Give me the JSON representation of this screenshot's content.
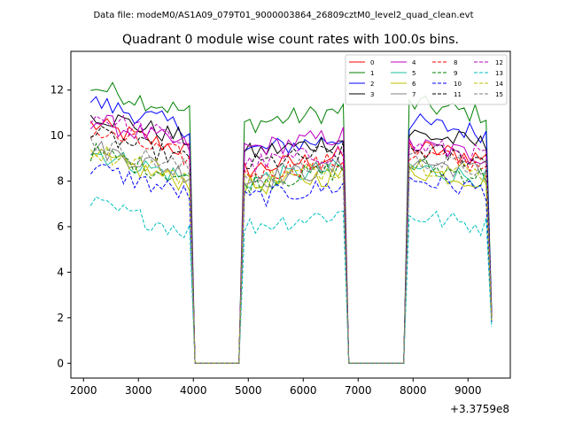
{
  "figure": {
    "suptitle": "Data file: modeM0/AS1A09_079T01_9000003864_26809cztM0_level2_quad_clean.evt"
  },
  "chart_data": {
    "type": "line",
    "title": "Quadrant 0 module wise count rates with 100.0s bins.",
    "xlabel": "",
    "ylabel": "",
    "x_offset_label": "+3.3759e8",
    "xlim": [
      1770,
      9770
    ],
    "ylim": [
      -0.65,
      13.7
    ],
    "xticks": [
      2000,
      3000,
      4000,
      5000,
      6000,
      7000,
      8000,
      9000
    ],
    "xtick_labels": [
      "2000",
      "3000",
      "4000",
      "5000",
      "6000",
      "7000",
      "8000",
      "9000"
    ],
    "yticks": [
      0,
      2,
      4,
      6,
      8,
      10,
      12
    ],
    "ytick_labels": [
      "0",
      "2",
      "4",
      "6",
      "8",
      "10",
      "12"
    ],
    "grid": false,
    "legend_placement": "top-right",
    "legend_columns": 4,
    "bin_size": 100,
    "segments": [
      {
        "start": 2130,
        "end": 3930
      },
      {
        "start": 4930,
        "end": 6730
      },
      {
        "start": 7930,
        "end": 9330
      }
    ],
    "x_all_start": 2130,
    "x_all_end": 9430,
    "series": [
      {
        "name": "0",
        "color": "#ff0000",
        "dashed": false,
        "levels": [
          10.1,
          8.8,
          9.3
        ],
        "end_value": 2.0
      },
      {
        "name": "1",
        "color": "#008000",
        "dashed": false,
        "levels": [
          11.8,
          10.8,
          11.2
        ],
        "end_value": 2.4
      },
      {
        "name": "2",
        "color": "#0000ff",
        "dashed": false,
        "levels": [
          11.1,
          9.6,
          10.4
        ],
        "end_value": 2.2
      },
      {
        "name": "3",
        "color": "#000000",
        "dashed": false,
        "levels": [
          10.6,
          9.5,
          9.9
        ],
        "end_value": 2.1
      },
      {
        "name": "4",
        "color": "#bf00bf",
        "dashed": false,
        "levels": [
          10.3,
          9.7,
          9.4
        ],
        "end_value": 2.0
      },
      {
        "name": "5",
        "color": "#1fbfa0",
        "dashed": false,
        "levels": [
          8.9,
          8.3,
          8.4
        ],
        "end_value": 1.9
      },
      {
        "name": "6",
        "color": "#bfbf00",
        "dashed": false,
        "levels": [
          8.7,
          8.0,
          8.3
        ],
        "end_value": 1.8
      },
      {
        "name": "7",
        "color": "#808080",
        "dashed": false,
        "levels": [
          9.1,
          8.3,
          8.7
        ],
        "end_value": 1.9
      },
      {
        "name": "8",
        "color": "#ff0000",
        "dashed": true,
        "levels": [
          9.8,
          8.6,
          9.0
        ],
        "end_value": 2.0
      },
      {
        "name": "9",
        "color": "#008000",
        "dashed": true,
        "levels": [
          8.9,
          8.2,
          8.5
        ],
        "end_value": 1.9
      },
      {
        "name": "10",
        "color": "#0000ff",
        "dashed": true,
        "levels": [
          8.2,
          7.5,
          7.9
        ],
        "end_value": 1.8
      },
      {
        "name": "11",
        "color": "#000000",
        "dashed": true,
        "levels": [
          9.7,
          9.0,
          9.2
        ],
        "end_value": 2.0
      },
      {
        "name": "12",
        "color": "#bf00bf",
        "dashed": true,
        "levels": [
          10.5,
          9.0,
          9.4
        ],
        "end_value": 2.1
      },
      {
        "name": "13",
        "color": "#00bfbf",
        "dashed": true,
        "levels": [
          6.6,
          6.3,
          6.3
        ],
        "end_value": 1.6
      },
      {
        "name": "14",
        "color": "#bfbf00",
        "dashed": true,
        "levels": [
          9.0,
          8.3,
          8.6
        ],
        "end_value": 1.9
      },
      {
        "name": "15",
        "color": "#808080",
        "dashed": true,
        "levels": [
          9.3,
          8.5,
          8.8
        ],
        "end_value": 1.9
      }
    ]
  }
}
